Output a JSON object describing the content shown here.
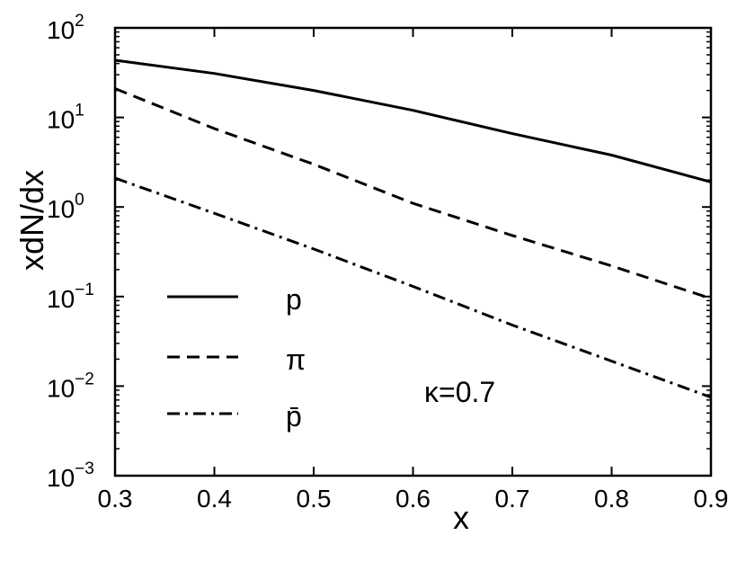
{
  "chart_data": {
    "type": "line",
    "xlabel": "x",
    "ylabel": "xdN/dx",
    "xlim": [
      0.3,
      0.9
    ],
    "ylim": [
      0.001,
      100
    ],
    "yscale": "log",
    "xticks": [
      "0.3",
      "0.4",
      "0.5",
      "0.6",
      "0.7",
      "0.8",
      "0.9"
    ],
    "xtick_values": [
      0.3,
      0.4,
      0.5,
      0.6,
      0.7,
      0.8,
      0.9
    ],
    "yticks": [
      {
        "base": "10",
        "exp": "2"
      },
      {
        "base": "10",
        "exp": "1"
      },
      {
        "base": "10",
        "exp": "0"
      },
      {
        "base": "10",
        "exp": "−1"
      },
      {
        "base": "10",
        "exp": "−2"
      },
      {
        "base": "10",
        "exp": "−3"
      }
    ],
    "ytick_values": [
      100,
      10,
      1,
      0.1,
      0.01,
      0.001
    ],
    "grid": false,
    "legend_position": "bottom-left",
    "series": [
      {
        "name": "p",
        "style": "solid",
        "color": "#000000",
        "x": [
          0.3,
          0.4,
          0.5,
          0.6,
          0.7,
          0.8,
          0.9
        ],
        "y": [
          43.5,
          31.0,
          20.0,
          12.0,
          6.6,
          3.8,
          1.9
        ]
      },
      {
        "name": "π",
        "style": "dashed",
        "color": "#000000",
        "x": [
          0.3,
          0.4,
          0.5,
          0.6,
          0.7,
          0.8,
          0.9
        ],
        "y": [
          21.0,
          7.5,
          3.0,
          1.1,
          0.48,
          0.22,
          0.095
        ]
      },
      {
        "name": "p̄",
        "style": "dashdot",
        "color": "#000000",
        "x": [
          0.3,
          0.4,
          0.5,
          0.6,
          0.7,
          0.8,
          0.9
        ],
        "y": [
          2.1,
          0.85,
          0.34,
          0.13,
          0.048,
          0.019,
          0.0075
        ]
      }
    ],
    "annotation": "κ=0.7"
  }
}
